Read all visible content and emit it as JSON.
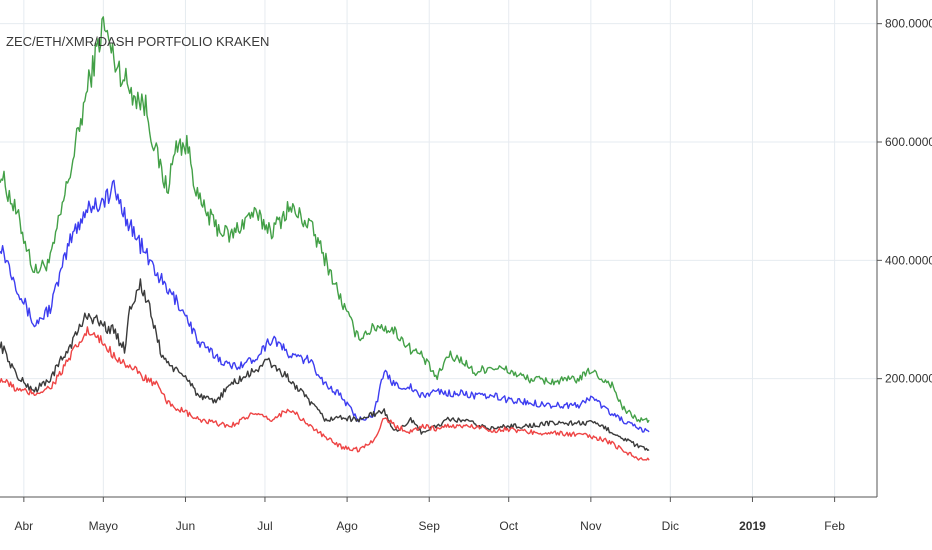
{
  "chart_data": {
    "type": "line",
    "title": "ZEC/ETH/XMR/DASH PORTFOLIO KRAKEN",
    "xlabel": "",
    "ylabel": "",
    "x_ticks": [
      {
        "label": "Abr",
        "day": 0
      },
      {
        "label": "Mayo",
        "day": 30
      },
      {
        "label": "Jun",
        "day": 61
      },
      {
        "label": "Jul",
        "day": 91
      },
      {
        "label": "Ago",
        "day": 122
      },
      {
        "label": "Sep",
        "day": 153
      },
      {
        "label": "Oct",
        "day": 183
      },
      {
        "label": "Nov",
        "day": 214
      },
      {
        "label": "Dic",
        "day": 244
      },
      {
        "label": "2019",
        "day": 275,
        "bold": true
      },
      {
        "label": "Feb",
        "day": 306
      }
    ],
    "y_ticks": [
      {
        "label": "200.0000",
        "value": 200
      },
      {
        "label": "400.0000",
        "value": 400
      },
      {
        "label": "600.0000",
        "value": 600
      },
      {
        "label": "800.0000",
        "value": 800
      }
    ],
    "xlim": [
      -9,
      322
    ],
    "ylim": [
      0,
      840
    ],
    "grid": true,
    "legend": "none",
    "series": [
      {
        "color": "#43a047",
        "x": [
          -9,
          -2,
          4,
          10,
          14,
          18,
          24,
          30,
          34,
          40,
          46,
          50,
          54,
          58,
          62,
          66,
          72,
          78,
          86,
          94,
          100,
          108,
          114,
          120,
          126,
          134,
          140,
          146,
          150,
          156,
          160,
          166,
          170,
          176,
          182,
          190,
          200,
          210,
          214,
          218,
          222,
          226,
          232,
          236
        ],
        "y": [
          550,
          470,
          380,
          400,
          480,
          560,
          690,
          800,
          740,
          690,
          660,
          580,
          520,
          600,
          590,
          500,
          460,
          440,
          480,
          450,
          490,
          460,
          400,
          330,
          270,
          290,
          280,
          250,
          240,
          200,
          240,
          230,
          210,
          220,
          215,
          200,
          195,
          200,
          215,
          200,
          190,
          150,
          130,
          130
        ]
      },
      {
        "color": "#3d3df0",
        "x": [
          -9,
          -2,
          4,
          10,
          14,
          18,
          24,
          30,
          34,
          40,
          46,
          50,
          54,
          58,
          62,
          66,
          72,
          78,
          86,
          94,
          100,
          108,
          114,
          120,
          126,
          132,
          136,
          140,
          146,
          150,
          156,
          160,
          166,
          172,
          178,
          182,
          190,
          200,
          210,
          214,
          218,
          222,
          226,
          232,
          236
        ],
        "y": [
          430,
          350,
          290,
          320,
          380,
          440,
          490,
          500,
          520,
          460,
          410,
          380,
          350,
          330,
          300,
          260,
          240,
          220,
          230,
          270,
          240,
          230,
          190,
          170,
          130,
          140,
          210,
          190,
          185,
          170,
          180,
          175,
          175,
          170,
          170,
          165,
          160,
          155,
          155,
          170,
          155,
          140,
          130,
          115,
          110
        ]
      },
      {
        "color": "#3a3a3a",
        "x": [
          -9,
          -2,
          4,
          10,
          14,
          18,
          24,
          30,
          34,
          38,
          40,
          44,
          48,
          52,
          58,
          62,
          66,
          72,
          78,
          86,
          92,
          100,
          104,
          108,
          114,
          120,
          126,
          132,
          136,
          140,
          146,
          150,
          156,
          160,
          166,
          172,
          178,
          182,
          190,
          200,
          210,
          214,
          218,
          222,
          226,
          232,
          236
        ],
        "y": [
          260,
          200,
          180,
          200,
          230,
          260,
          310,
          290,
          280,
          250,
          320,
          360,
          310,
          240,
          210,
          200,
          170,
          160,
          190,
          210,
          230,
          200,
          180,
          160,
          130,
          135,
          130,
          140,
          145,
          110,
          130,
          110,
          120,
          130,
          130,
          120,
          115,
          120,
          120,
          125,
          125,
          125,
          120,
          110,
          100,
          85,
          80
        ]
      },
      {
        "color": "#ee4444",
        "x": [
          -9,
          -2,
          4,
          10,
          14,
          18,
          24,
          30,
          34,
          40,
          46,
          50,
          54,
          58,
          62,
          66,
          72,
          78,
          86,
          94,
          100,
          108,
          114,
          120,
          126,
          132,
          136,
          140,
          146,
          150,
          156,
          160,
          166,
          172,
          178,
          182,
          190,
          200,
          210,
          214,
          218,
          222,
          226,
          232,
          236
        ],
        "y": [
          200,
          180,
          175,
          185,
          210,
          240,
          280,
          260,
          240,
          220,
          200,
          190,
          160,
          150,
          140,
          130,
          125,
          120,
          140,
          130,
          150,
          120,
          100,
          85,
          80,
          95,
          135,
          120,
          110,
          120,
          115,
          120,
          120,
          118,
          112,
          115,
          110,
          108,
          105,
          102,
          98,
          90,
          80,
          65,
          62
        ]
      }
    ]
  }
}
